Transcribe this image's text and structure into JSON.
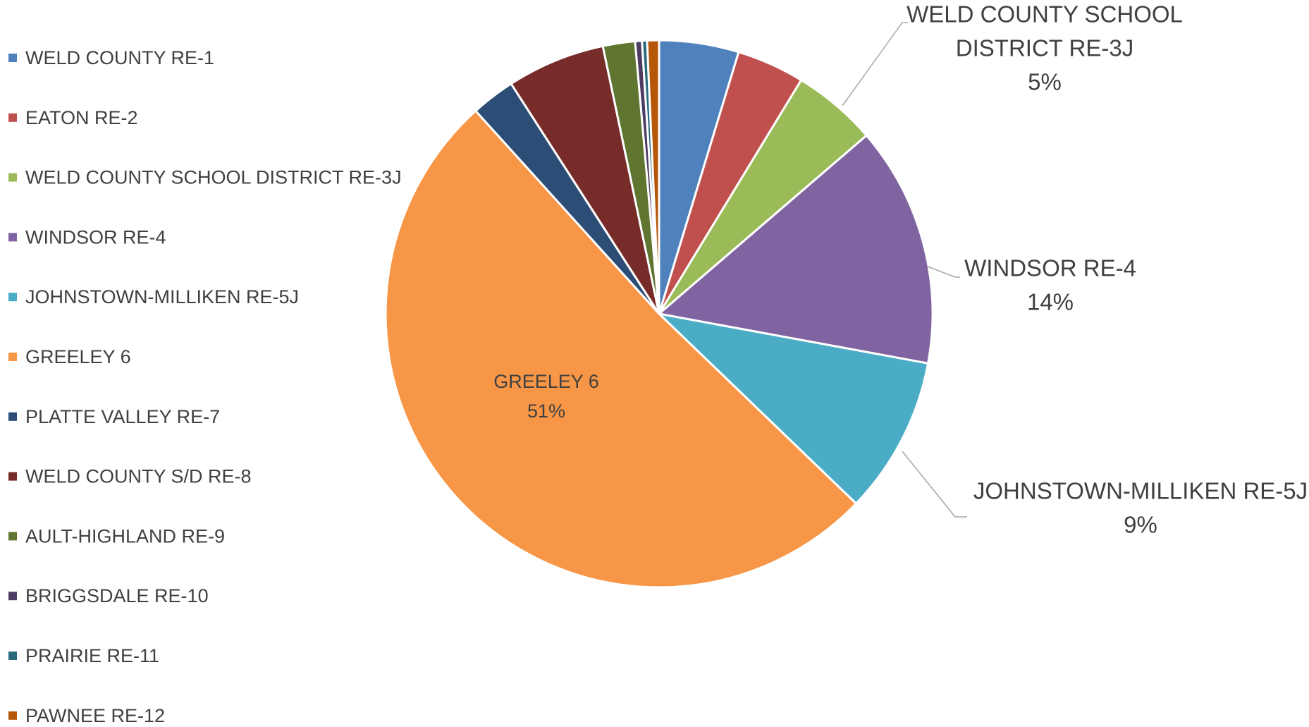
{
  "chart_data": {
    "type": "pie",
    "title": "",
    "legend_position": "left",
    "categories": [
      "WELD COUNTY RE-1",
      "EATON RE-2",
      "WELD COUNTY SCHOOL DISTRICT RE-3J",
      "WINDSOR RE-4",
      "JOHNSTOWN-MILLIKEN RE-5J",
      "GREELEY 6",
      "PLATTE VALLEY RE-7",
      "WELD COUNTY S/D RE-8",
      "AULT-HIGHLAND RE-9",
      "BRIGGSDALE RE-10",
      "PRAIRIE RE-11",
      "PAWNEE RE-12"
    ],
    "values": [
      4.7,
      4.0,
      5.0,
      14.2,
      9.3,
      51.1,
      2.6,
      5.8,
      1.9,
      0.4,
      0.3,
      0.7
    ],
    "colors": [
      "#4F81BD",
      "#C0504D",
      "#9BBB59",
      "#8064A2",
      "#4BACC6",
      "#F79646",
      "#2C4D75",
      "#772C2A",
      "#5F7530",
      "#4D3B62",
      "#276A7C",
      "#B65708"
    ],
    "data_labels": [
      {
        "category": "WELD COUNTY SCHOOL DISTRICT RE-3J",
        "lines": [
          "WELD COUNTY SCHOOL",
          "DISTRICT RE-3J"
        ],
        "percent": "5%"
      },
      {
        "category": "WINDSOR RE-4",
        "lines": [
          "WINDSOR RE-4"
        ],
        "percent": "14%"
      },
      {
        "category": "JOHNSTOWN-MILLIKEN RE-5J",
        "lines": [
          "JOHNSTOWN-MILLIKEN RE-5J"
        ],
        "percent": "9%"
      },
      {
        "category": "GREELEY 6",
        "lines": [
          "GREELEY 6"
        ],
        "percent": "51%"
      }
    ]
  }
}
